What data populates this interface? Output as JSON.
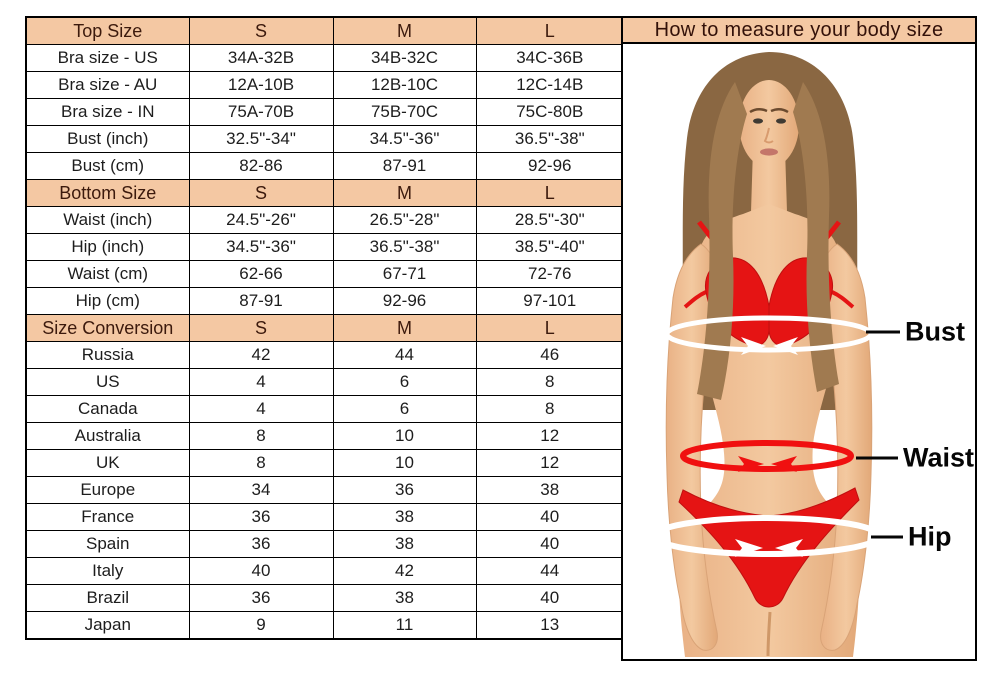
{
  "colors": {
    "header_bg": "#f4c8a3",
    "border": "#000000",
    "header_text": "#3c1a0d",
    "data_text": "#1d1d1d",
    "title_text": "#331109",
    "accent_red": "#e51414",
    "band_white": "#ffffff"
  },
  "size_chart": {
    "rows": [
      {
        "type": "header",
        "label": "Top Size",
        "values": [
          "S",
          "M",
          "L"
        ]
      },
      {
        "type": "data",
        "label": "Bra size - US",
        "values": [
          "34A-32B",
          "34B-32C",
          "34C-36B"
        ]
      },
      {
        "type": "data",
        "label": "Bra size - AU",
        "values": [
          "12A-10B",
          "12B-10C",
          "12C-14B"
        ]
      },
      {
        "type": "data",
        "label": "Bra size - IN",
        "values": [
          "75A-70B",
          "75B-70C",
          "75C-80B"
        ]
      },
      {
        "type": "data",
        "label": "Bust (inch)",
        "values": [
          "32.5\"-34\"",
          "34.5\"-36\"",
          "36.5\"-38\""
        ]
      },
      {
        "type": "data",
        "label": "Bust (cm)",
        "values": [
          "82-86",
          "87-91",
          "92-96"
        ]
      },
      {
        "type": "header",
        "label": "Bottom Size",
        "values": [
          "S",
          "M",
          "L"
        ]
      },
      {
        "type": "data",
        "label": "Waist (inch)",
        "values": [
          "24.5\"-26\"",
          "26.5\"-28\"",
          "28.5\"-30\""
        ]
      },
      {
        "type": "data",
        "label": "Hip (inch)",
        "values": [
          "34.5\"-36\"",
          "36.5\"-38\"",
          "38.5\"-40\""
        ]
      },
      {
        "type": "data",
        "label": "Waist (cm)",
        "values": [
          "62-66",
          "67-71",
          "72-76"
        ]
      },
      {
        "type": "data",
        "label": "Hip (cm)",
        "values": [
          "87-91",
          "92-96",
          "97-101"
        ]
      },
      {
        "type": "header",
        "label": "Size Conversion",
        "values": [
          "S",
          "M",
          "L"
        ]
      },
      {
        "type": "data",
        "label": "Russia",
        "values": [
          "42",
          "44",
          "46"
        ]
      },
      {
        "type": "data",
        "label": "US",
        "values": [
          "4",
          "6",
          "8"
        ]
      },
      {
        "type": "data",
        "label": "Canada",
        "values": [
          "4",
          "6",
          "8"
        ]
      },
      {
        "type": "data",
        "label": "Australia",
        "values": [
          "8",
          "10",
          "12"
        ]
      },
      {
        "type": "data",
        "label": "UK",
        "values": [
          "8",
          "10",
          "12"
        ]
      },
      {
        "type": "data",
        "label": "Europe",
        "values": [
          "34",
          "36",
          "38"
        ]
      },
      {
        "type": "data",
        "label": "France",
        "values": [
          "36",
          "38",
          "40"
        ]
      },
      {
        "type": "data",
        "label": "Spain",
        "values": [
          "36",
          "38",
          "40"
        ]
      },
      {
        "type": "data",
        "label": "Italy",
        "values": [
          "40",
          "42",
          "44"
        ]
      },
      {
        "type": "data",
        "label": "Brazil",
        "values": [
          "36",
          "38",
          "40"
        ]
      },
      {
        "type": "data",
        "label": "Japan",
        "values": [
          "9",
          "11",
          "13"
        ]
      }
    ]
  },
  "measure_guide": {
    "title": "How to measure your body size",
    "labels": {
      "bust": "Bust",
      "waist": "Waist",
      "hip": "Hip"
    }
  }
}
